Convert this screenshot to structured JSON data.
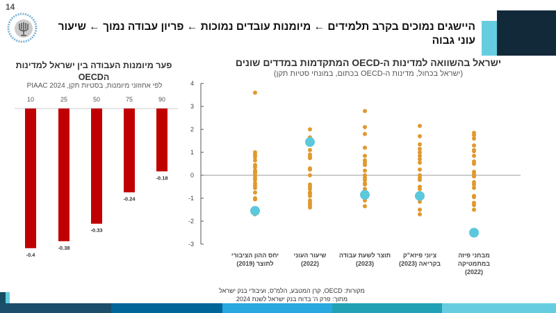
{
  "page_number": "14",
  "header": {
    "title": "היישגים נמוכים בקרב תלמידים ← מיומנות עובדים נמוכות ← פריון עבודה נמוך ← שיעור עוני גבוה"
  },
  "logo": {
    "text": "בנק ישראל BANK OF ISRAEL"
  },
  "colors": {
    "bar": "#c00000",
    "oecd_dot": "#e0992f",
    "israel_dot": "#5bc8dc",
    "header_dark": "#12293a",
    "header_accent": "#66cde0",
    "footer": [
      "#1a4e6a",
      "#006699",
      "#29a8e0",
      "#22a0b4",
      "#66cde0"
    ]
  },
  "chart_data": [
    {
      "type": "bar",
      "title": "פער מיומנות העבודה בין ישראל למדינות הOECD",
      "subtitle": "לפי אחוזוני מיומנות, בסטיות תקן, PIAAC 2024",
      "categories": [
        "10",
        "25",
        "50",
        "75",
        "90"
      ],
      "values": [
        -0.4,
        -0.38,
        -0.33,
        -0.24,
        -0.18
      ],
      "data_labels": [
        "-0.4",
        "-0.38",
        "-0.33",
        "-0.24",
        "-0.18"
      ],
      "xlabel": "",
      "ylabel": "",
      "ylim": [
        -0.4,
        0
      ],
      "grid": false
    },
    {
      "type": "scatter",
      "title": "ישראל בהשוואה למדינות ה-OECD המתקדמות במדדים שונים",
      "subtitle": "(ישראל בכחול, מדינות ה-OECD בכתום, במונחי סטיות תקן)",
      "categories": [
        "יחס ההון הציבורי לתוצר (2019)",
        "שיעור העוני (2022)",
        "תוצר לשעת עבודה (2023)",
        "ציוני פיזא\"ק בקריאה (2023)",
        "מבחני פיזה במתמטיקה (2022)"
      ],
      "yticks": [
        "4",
        "3",
        "2",
        "1",
        "0",
        "-1",
        "-2",
        "-3"
      ],
      "ylim": [
        -3,
        4
      ],
      "grid": false,
      "oecd": [
        [
          3.6,
          1.0,
          0.9,
          0.8,
          0.65,
          0.45,
          0.35,
          0.2,
          0.15,
          0.1,
          0.0,
          -0.1,
          -0.2,
          -0.35,
          -0.45,
          -0.55,
          -0.75,
          -1.0,
          -1.05,
          -1.7
        ],
        [
          2.0,
          1.65,
          1.1,
          0.9,
          0.8,
          0.75,
          0.3,
          0.25,
          0.0,
          -0.4,
          -0.5,
          -0.6,
          -0.75,
          -0.8,
          -0.9,
          -1.1,
          -1.2,
          -1.3,
          -1.4
        ],
        [
          2.8,
          2.1,
          1.8,
          1.2,
          0.85,
          0.65,
          0.55,
          0.45,
          0.2,
          0.0,
          -0.1,
          -0.2,
          -0.35,
          -0.4,
          -0.6,
          -1.0,
          -1.1,
          -1.35
        ],
        [
          2.15,
          1.7,
          1.35,
          1.15,
          1.0,
          0.85,
          0.7,
          0.55,
          0.25,
          0.0,
          -0.1,
          -0.2,
          -0.5,
          -0.6,
          -0.9,
          -1.15,
          -1.5,
          -1.7
        ],
        [
          1.85,
          1.75,
          1.6,
          1.3,
          1.1,
          1.05,
          0.85,
          0.6,
          0.5,
          0.15,
          0.05,
          -0.05,
          -0.3,
          -0.4,
          -0.55,
          -0.9,
          -0.95,
          -1.2,
          -1.3,
          -1.5
        ]
      ],
      "israel": [
        -1.55,
        1.45,
        -0.85,
        -0.9,
        -2.5
      ]
    }
  ],
  "x_category_lines": [
    [
      "יחס ההון הציבורי",
      "לתוצר (2019)"
    ],
    [
      "שיעור העוני",
      "(2022)"
    ],
    [
      "תוצר לשעת עבודה",
      "(2023)"
    ],
    [
      "ציוני פיזא\"ק",
      "בקריאה (2023)"
    ],
    [
      "מבחני פיזה",
      "במתמטיקה",
      "(2022)"
    ]
  ],
  "source": {
    "line1": "מקורות: OECD, קרן המטבע, הלמ\"ס, ועיבודי בנק ישראל",
    "line2": "מתוך: פרק ה' בדוח בנק ישראל לשנת 2024"
  }
}
